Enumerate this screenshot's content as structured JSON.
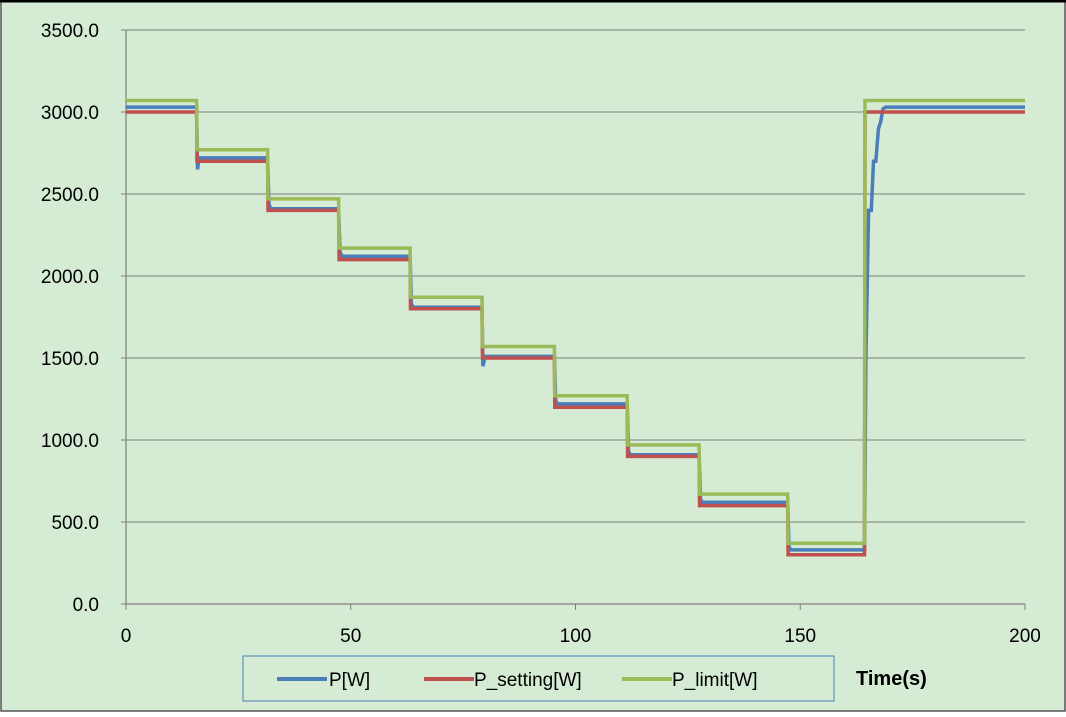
{
  "chart_data": {
    "type": "line",
    "title": "",
    "xlabel": "Time(s)",
    "ylabel": "",
    "xlim": [
      0,
      200
    ],
    "ylim": [
      0,
      3500
    ],
    "x_ticks": [
      0,
      50,
      100,
      150,
      200
    ],
    "x_tick_labels": [
      "0",
      "50",
      "100",
      "150",
      "200"
    ],
    "y_ticks": [
      0,
      500,
      1000,
      1500,
      2000,
      2500,
      3000,
      3500
    ],
    "y_tick_labels": [
      "0.0",
      "500.0",
      "1000.0",
      "1500.0",
      "2000.0",
      "2500.0",
      "3000.0",
      "3500.0"
    ],
    "grid": "horizontal",
    "legend": {
      "placement": "bottom"
    },
    "colors": {
      "background": "#d6ebd4",
      "grid": "#7f7f7f",
      "axis": "#7f7f7f"
    },
    "series": [
      {
        "name": "P[W]",
        "color": "#4a7ebb",
        "x": [
          0,
          15.7,
          15.9,
          16.3,
          31.5,
          31.8,
          32.2,
          47.3,
          47.6,
          48.0,
          63.2,
          63.5,
          63.9,
          79.2,
          79.4,
          79.9,
          95.3,
          95.6,
          96.0,
          111.5,
          111.8,
          112.2,
          127.5,
          127.8,
          128.2,
          147.2,
          147.5,
          147.9,
          164.3,
          164.6,
          165.2,
          165.8,
          166.3,
          166.8,
          167.4,
          167.9,
          168.4,
          169.0,
          200
        ],
        "y": [
          3030,
          3030,
          2650,
          2720,
          2720,
          2440,
          2410,
          2410,
          2150,
          2120,
          2120,
          1830,
          1810,
          1810,
          1450,
          1510,
          1510,
          1240,
          1220,
          1220,
          930,
          910,
          910,
          640,
          620,
          620,
          350,
          330,
          330,
          1500,
          2400,
          2400,
          2700,
          2700,
          2900,
          2940,
          3020,
          3030,
          3030
        ]
      },
      {
        "name": "P_setting[W]",
        "color": "#c0504d",
        "x": [
          0,
          15.7,
          15.8,
          31.5,
          31.6,
          47.3,
          47.4,
          63.2,
          63.3,
          79.2,
          79.3,
          95.3,
          95.4,
          111.5,
          111.6,
          127.5,
          127.6,
          147.2,
          147.3,
          164.3,
          164.4,
          200
        ],
        "y": [
          3000,
          3000,
          2700,
          2700,
          2400,
          2400,
          2100,
          2100,
          1800,
          1800,
          1500,
          1500,
          1200,
          1200,
          900,
          900,
          600,
          600,
          300,
          300,
          3000,
          3000
        ]
      },
      {
        "name": "P_limit[W]",
        "color": "#9bbb59",
        "x": [
          0,
          15.7,
          15.8,
          31.5,
          31.6,
          47.3,
          47.4,
          63.2,
          63.3,
          79.2,
          79.3,
          95.3,
          95.4,
          111.5,
          111.6,
          127.5,
          127.6,
          147.2,
          147.3,
          164.3,
          164.4,
          200
        ],
        "y": [
          3070,
          3070,
          2770,
          2770,
          2470,
          2470,
          2170,
          2170,
          1870,
          1870,
          1570,
          1570,
          1270,
          1270,
          970,
          970,
          670,
          670,
          370,
          370,
          3070,
          3070
        ]
      }
    ]
  }
}
